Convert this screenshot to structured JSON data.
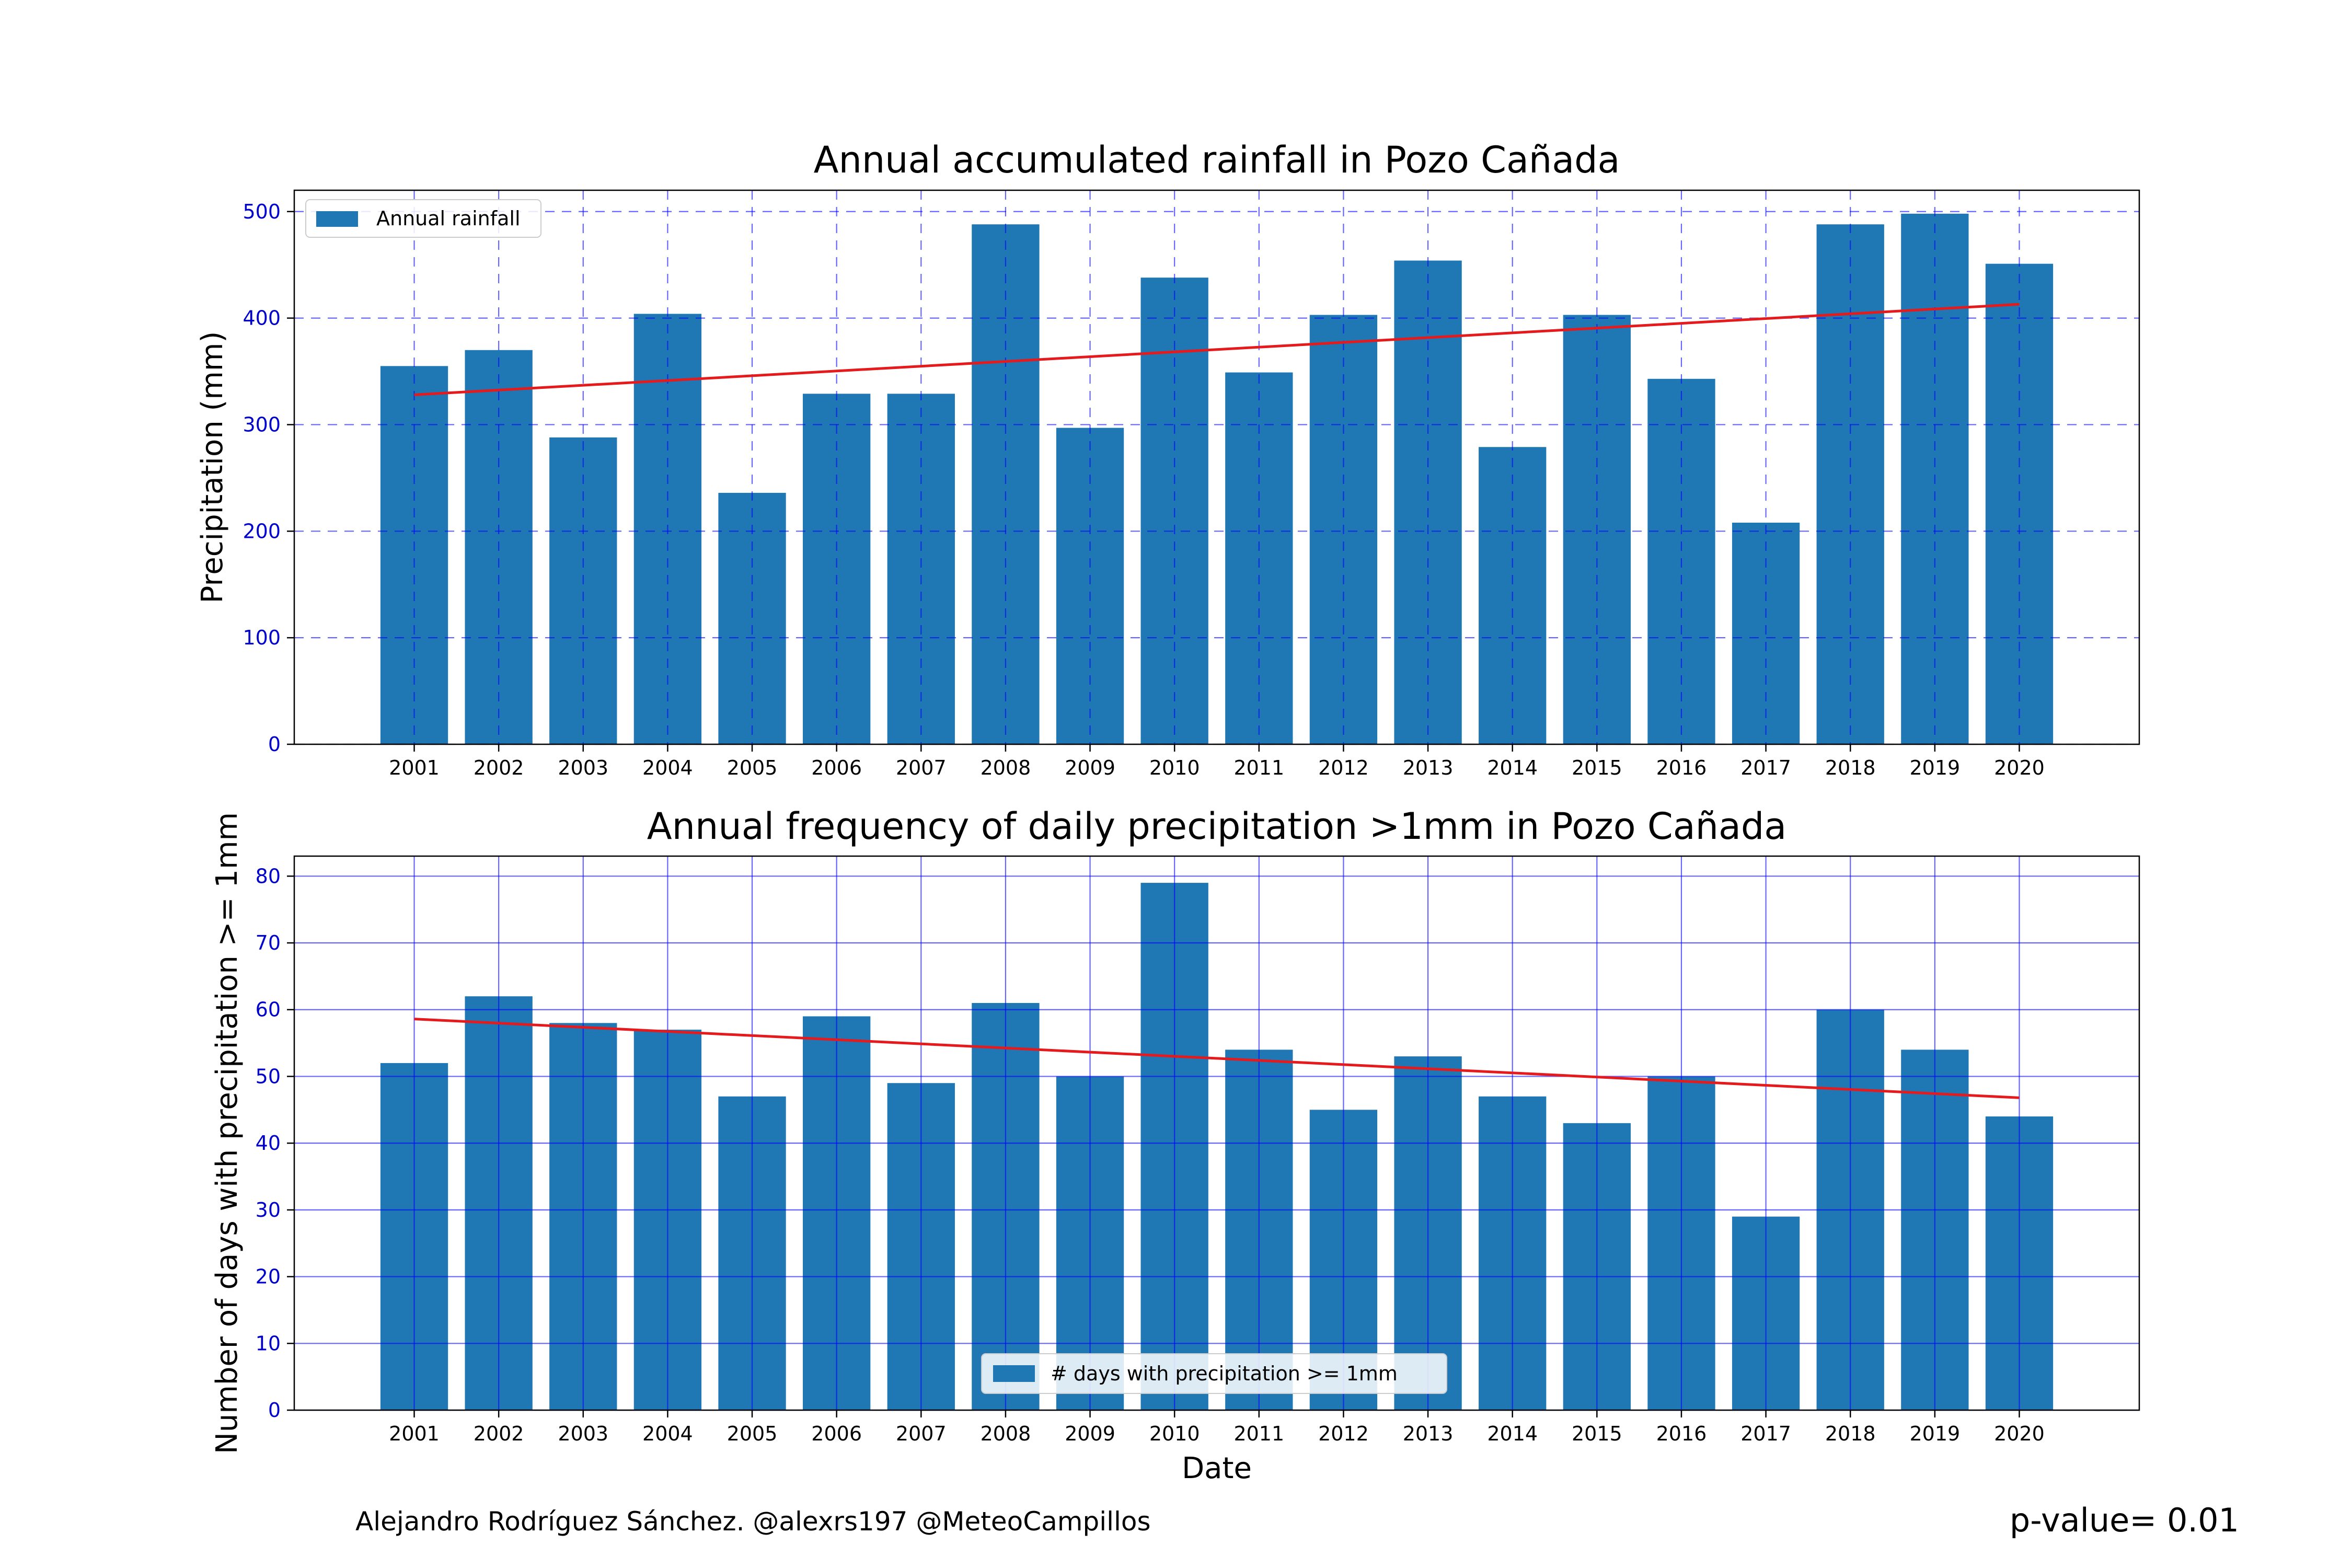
{
  "chart_data": [
    {
      "type": "bar",
      "title": "Annual accumulated rainfall in Pozo Cañada",
      "xlabel": "",
      "ylabel": "Precipitation (mm)",
      "ylim": [
        0,
        520
      ],
      "yticks": [
        0,
        100,
        200,
        300,
        400,
        500
      ],
      "grid": "on (dashed)",
      "legend_position": "top-left",
      "categories": [
        "2001",
        "2002",
        "2003",
        "2004",
        "2005",
        "2006",
        "2007",
        "2008",
        "2009",
        "2010",
        "2011",
        "2012",
        "2013",
        "2014",
        "2015",
        "2016",
        "2017",
        "2018",
        "2019",
        "2020"
      ],
      "series": [
        {
          "name": "Annual rainfall",
          "color": "#1f77b4",
          "values": [
            355,
            370,
            288,
            404,
            236,
            329,
            329,
            488,
            297,
            438,
            349,
            403,
            454,
            279,
            403,
            343,
            208,
            488,
            498,
            451
          ]
        }
      ],
      "trend": {
        "color": "#e41a1c",
        "start": 328,
        "end": 413
      }
    },
    {
      "type": "bar",
      "title": "Annual frequency of daily precipitation >1mm in Pozo Cañada",
      "xlabel": "Date",
      "ylabel": "Number of days with precipitation >= 1mm",
      "ylim": [
        0,
        83
      ],
      "yticks": [
        0,
        10,
        20,
        30,
        40,
        50,
        60,
        70,
        80
      ],
      "grid": "on (solid)",
      "legend_position": "bottom-center",
      "categories": [
        "2001",
        "2002",
        "2003",
        "2004",
        "2005",
        "2006",
        "2007",
        "2008",
        "2009",
        "2010",
        "2011",
        "2012",
        "2013",
        "2014",
        "2015",
        "2016",
        "2017",
        "2018",
        "2019",
        "2020"
      ],
      "series": [
        {
          "name": "# days with precipitation >= 1mm",
          "color": "#1f77b4",
          "values": [
            52,
            62,
            58,
            57,
            47,
            59,
            49,
            61,
            50,
            79,
            54,
            45,
            53,
            47,
            43,
            50,
            29,
            60,
            54,
            44
          ]
        }
      ],
      "trend": {
        "color": "#e41a1c",
        "start": 58.6,
        "end": 46.8
      }
    }
  ],
  "footer": {
    "credit": "Alejandro Rodríguez Sánchez. @alexrs197 @MeteoCampillos",
    "pvalue": "p-value= 0.01"
  },
  "colors": {
    "bar": "#1f77b4",
    "trend": "#e41a1c",
    "grid": "#0000ff",
    "tick_label": "#0000cc"
  }
}
